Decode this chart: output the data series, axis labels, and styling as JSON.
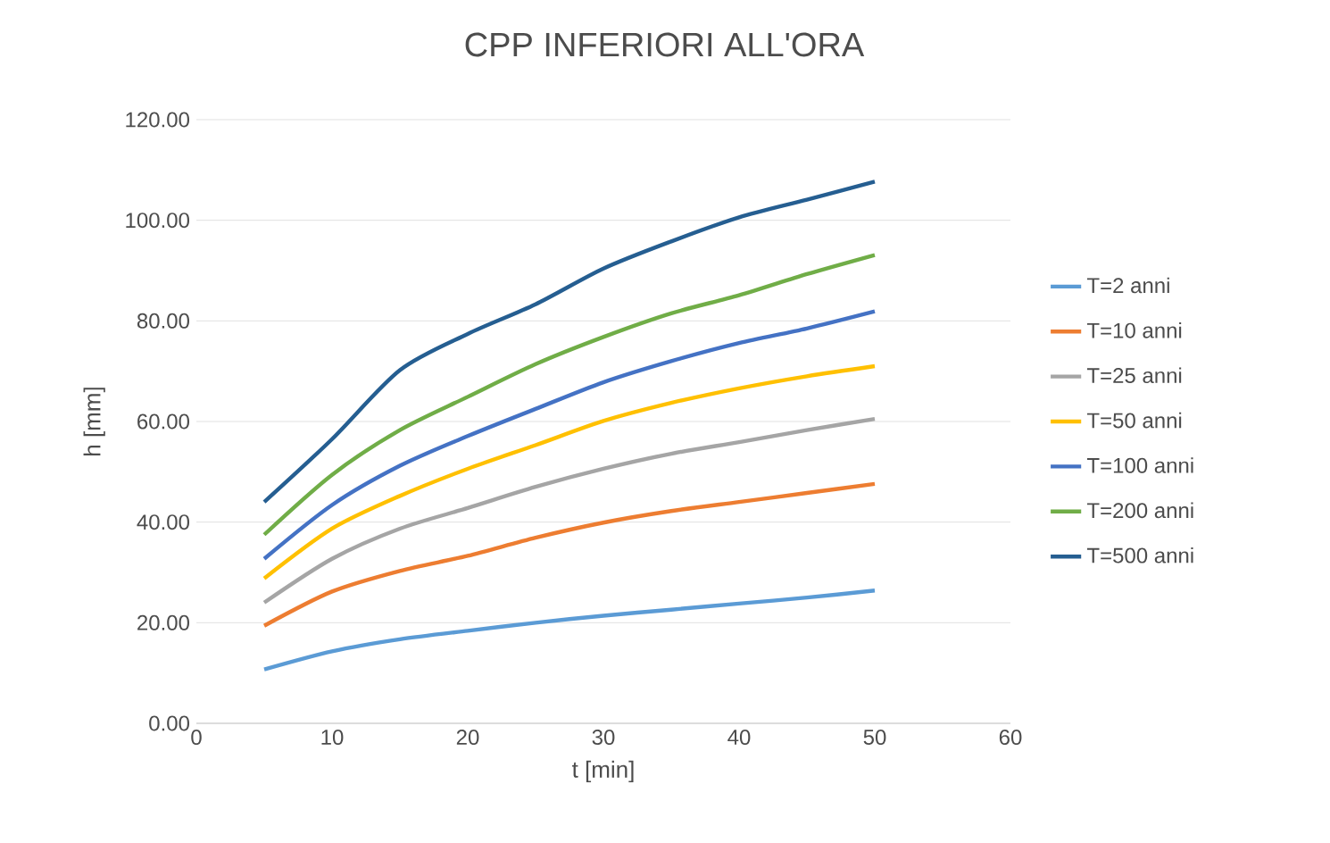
{
  "chart_data": {
    "type": "line",
    "title": "CPP INFERIORI ALL'ORA",
    "xlabel": "t [min]",
    "ylabel": "h [mm]",
    "x": [
      5,
      10,
      15,
      20,
      25,
      30,
      35,
      40,
      45,
      50
    ],
    "series": [
      {
        "name": "T=2 anni",
        "color": "#5b9bd5",
        "values": [
          10.7,
          14.3,
          16.7,
          18.4,
          20.0,
          21.4,
          22.6,
          23.8,
          25.0,
          26.4
        ]
      },
      {
        "name": "T=10 anni",
        "color": "#ed7d31",
        "values": [
          19.4,
          26.2,
          30.3,
          33.3,
          36.9,
          39.9,
          42.2,
          44.0,
          45.8,
          47.6
        ]
      },
      {
        "name": "T=25 anni",
        "color": "#a5a5a5",
        "values": [
          24.0,
          32.7,
          38.7,
          42.8,
          47.0,
          50.6,
          53.6,
          55.9,
          58.3,
          60.5
        ]
      },
      {
        "name": "T=50 anni",
        "color": "#ffc000",
        "values": [
          28.8,
          38.7,
          45.2,
          50.6,
          55.3,
          60.1,
          63.7,
          66.6,
          69.0,
          71.0
        ]
      },
      {
        "name": "T=100 anni",
        "color": "#4472c4",
        "values": [
          32.7,
          43.4,
          51.2,
          57.1,
          62.5,
          67.8,
          72.0,
          75.6,
          78.5,
          81.9
        ]
      },
      {
        "name": "T=200 anni",
        "color": "#70ad47",
        "values": [
          37.5,
          49.4,
          58.3,
          64.9,
          71.4,
          76.8,
          81.5,
          85.1,
          89.3,
          93.1
        ]
      },
      {
        "name": "T=500 anni",
        "color": "#255e91",
        "values": [
          44.0,
          56.5,
          70.2,
          77.4,
          83.3,
          90.4,
          95.8,
          100.6,
          104.1,
          107.7
        ]
      }
    ],
    "xlim": [
      0,
      60
    ],
    "xticks": [
      0,
      10,
      20,
      30,
      40,
      50,
      60
    ],
    "ylim": [
      0,
      120
    ],
    "yticks": [
      {
        "value": 0,
        "label": "0.00"
      },
      {
        "value": 20,
        "label": "20.00"
      },
      {
        "value": 40,
        "label": "40.00"
      },
      {
        "value": 60,
        "label": "60.00"
      },
      {
        "value": 80,
        "label": "80.00"
      },
      {
        "value": 100,
        "label": "100.00"
      },
      {
        "value": 120,
        "label": "120.00"
      }
    ],
    "grid": "y",
    "legend": "right",
    "marker": "none",
    "line_style": "solid"
  }
}
